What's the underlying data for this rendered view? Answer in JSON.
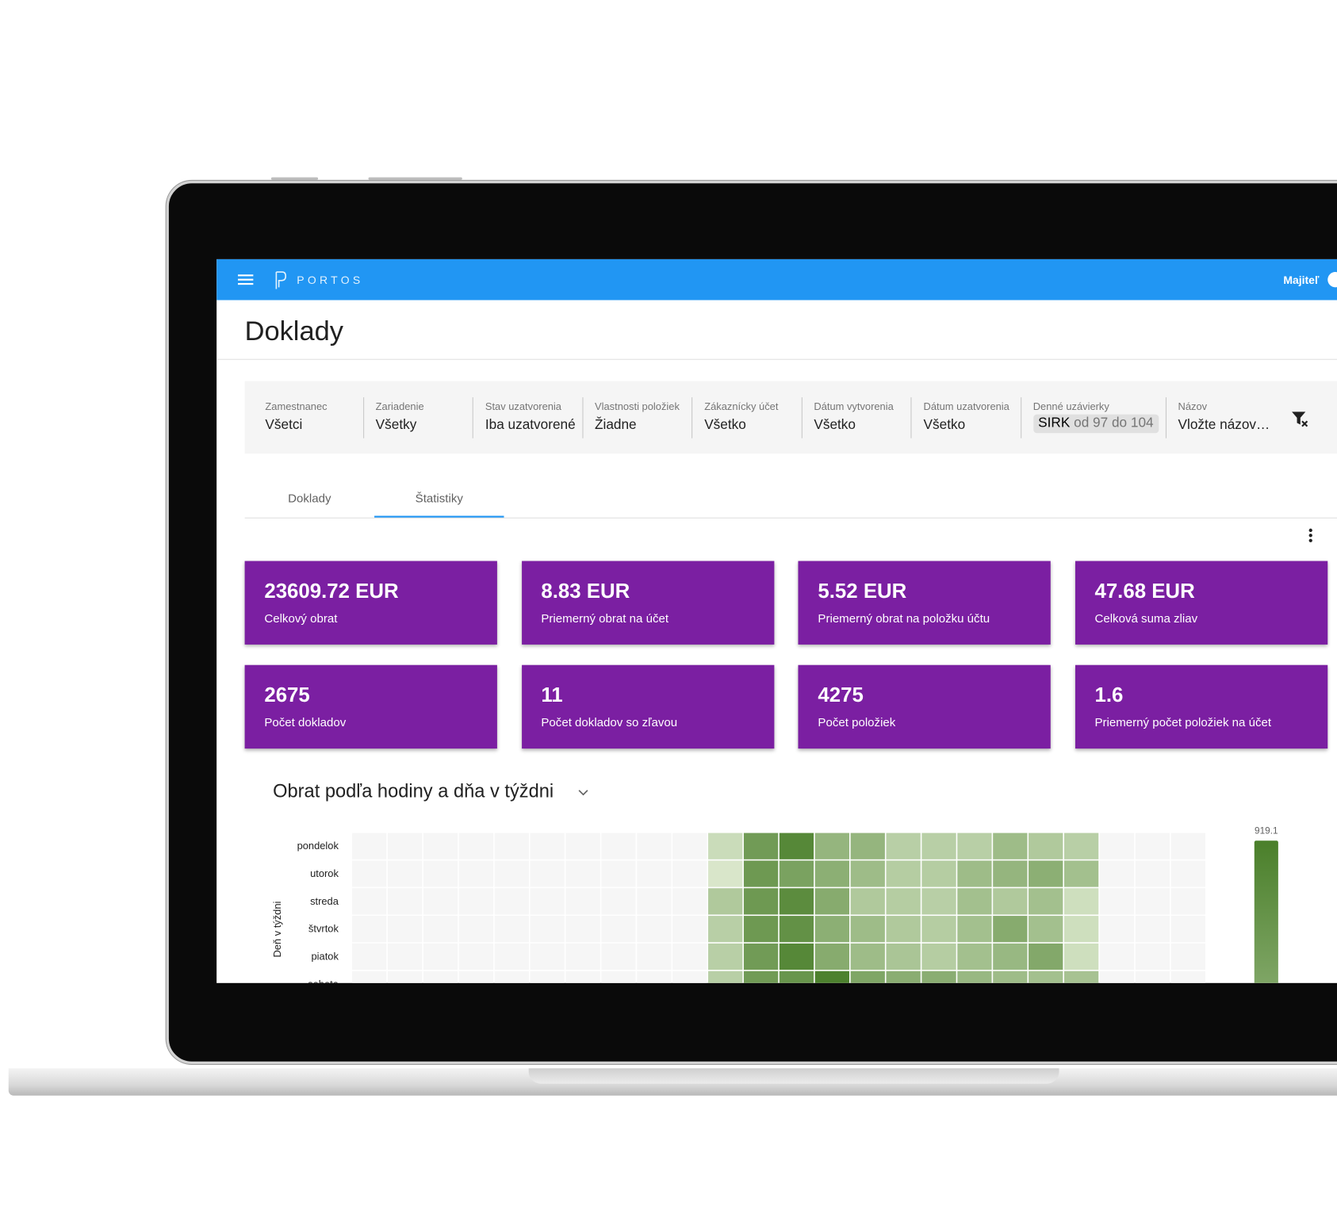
{
  "header": {
    "brand": "PORTOS",
    "user": "Majiteľ"
  },
  "page_title": "Doklady",
  "filters": [
    {
      "label": "Zamestnanec",
      "value": "Všetci"
    },
    {
      "label": "Zariadenie",
      "value": "Všetky"
    },
    {
      "label": "Stav uzatvorenia",
      "value": "Iba uzatvorené"
    },
    {
      "label": "Vlastnosti položiek",
      "value": "Žiadne"
    },
    {
      "label": "Zákaznícky účet",
      "value": "Všetko"
    },
    {
      "label": "Dátum vytvorenia",
      "value": "Všetko"
    },
    {
      "label": "Dátum uzatvorenia",
      "value": "Všetko"
    },
    {
      "label": "Denné uzávierky",
      "chip": {
        "name": "SIRK",
        "range": "od 97 do 104"
      }
    },
    {
      "label": "Názov",
      "placeholder": "Vložte názov…"
    }
  ],
  "tabs": [
    "Doklady",
    "Štatistiky"
  ],
  "active_tab": 1,
  "stats": [
    {
      "value": "23609.72 EUR",
      "label": "Celkový obrat"
    },
    {
      "value": "8.83 EUR",
      "label": "Priemerný obrat na účet"
    },
    {
      "value": "5.52 EUR",
      "label": "Priemerný obrat na položku účtu"
    },
    {
      "value": "47.68 EUR",
      "label": "Celková suma zliav"
    },
    {
      "value": "2675",
      "label": "Počet dokladov"
    },
    {
      "value": "11",
      "label": "Počet dokladov so zľavou"
    },
    {
      "value": "4275",
      "label": "Počet položiek"
    },
    {
      "value": "1.6",
      "label": "Priemerný počet položiek na účet"
    }
  ],
  "chart_data": {
    "type": "heatmap",
    "title": "Obrat podľa hodiny a dňa v týždni",
    "y_label": "Deň v týždni",
    "rows": [
      "pondelok",
      "utorok",
      "streda",
      "štvrtok",
      "piatok",
      "sobota"
    ],
    "values": [
      [
        0,
        0,
        0,
        0,
        0,
        0,
        0,
        0,
        0,
        0,
        200,
        700,
        850,
        500,
        500,
        300,
        300,
        300,
        450,
        350,
        300,
        0,
        0,
        0
      ],
      [
        0,
        0,
        0,
        0,
        0,
        0,
        0,
        0,
        0,
        0,
        120,
        720,
        650,
        550,
        450,
        320,
        320,
        450,
        500,
        550,
        420,
        0,
        0,
        0
      ],
      [
        0,
        0,
        0,
        0,
        0,
        0,
        0,
        0,
        0,
        0,
        350,
        720,
        820,
        580,
        350,
        320,
        300,
        420,
        350,
        420,
        180,
        0,
        0,
        0
      ],
      [
        0,
        0,
        0,
        0,
        0,
        0,
        0,
        0,
        0,
        0,
        300,
        720,
        780,
        550,
        450,
        350,
        320,
        420,
        580,
        420,
        180,
        0,
        0,
        0
      ],
      [
        0,
        0,
        0,
        0,
        0,
        0,
        0,
        0,
        0,
        0,
        300,
        700,
        850,
        580,
        450,
        380,
        320,
        420,
        480,
        600,
        180,
        0,
        0,
        0
      ],
      [
        0,
        0,
        0,
        0,
        0,
        0,
        0,
        0,
        0,
        0,
        300,
        700,
        750,
        900,
        620,
        560,
        560,
        480,
        450,
        420,
        400,
        0,
        0,
        0
      ]
    ],
    "zlim": [
      0,
      919.1
    ],
    "zticks": [
      919.1
    ],
    "colorscale": [
      "#eef6e2",
      "#4a7f2a"
    ],
    "empty_color": "#f6f6f6"
  }
}
